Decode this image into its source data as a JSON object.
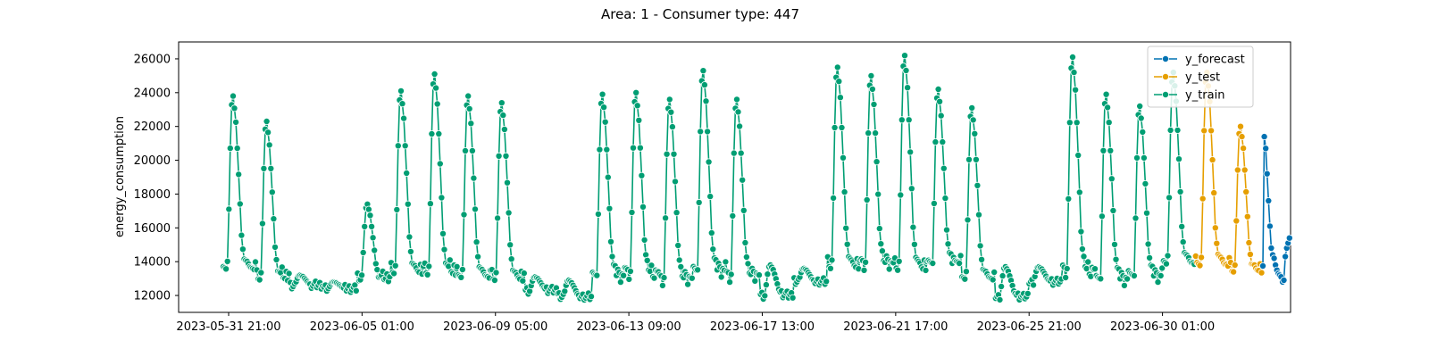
{
  "chart_data": {
    "type": "line",
    "title": "Area: 1 - Consumer type: 447",
    "xlabel": "",
    "ylabel": "energy_consumption",
    "ylim": [
      11000,
      27000
    ],
    "y_ticks": [
      "12000",
      "14000",
      "16000",
      "18000",
      "20000",
      "22000",
      "24000",
      "26000"
    ],
    "x_tick_labels": [
      {
        "label": "2023-05-31 21:00",
        "t": 0
      },
      {
        "label": "2023-06-05 01:00",
        "t": 100
      },
      {
        "label": "2023-06-09 05:00",
        "t": 200
      },
      {
        "label": "2023-06-13 09:00",
        "t": 300
      },
      {
        "label": "2023-06-17 13:00",
        "t": 400
      },
      {
        "label": "2023-06-21 17:00",
        "t": 500
      },
      {
        "label": "2023-06-25 21:00",
        "t": 600
      },
      {
        "label": "2023-06-30 01:00",
        "t": 700
      }
    ],
    "x_time_unit": "hours since 2023-05-31 21:00",
    "legend_position": "top-right",
    "series": [
      {
        "name": "y_forecast",
        "color": "#0072b2"
      },
      {
        "name": "y_test",
        "color": "#e69f00"
      },
      {
        "name": "y_train",
        "color": "#009e73"
      }
    ],
    "train_days": [
      {
        "peak": 23800,
        "low": 13500
      },
      {
        "peak": 22300,
        "low": 13000
      },
      {
        "peak": 13200,
        "low": 12600
      },
      {
        "peak": 12800,
        "low": 12400
      },
      {
        "peak": 17400,
        "low": 13000
      },
      {
        "peak": 24100,
        "low": 13300
      },
      {
        "peak": 25100,
        "low": 13300
      },
      {
        "peak": 23800,
        "low": 13000
      },
      {
        "peak": 23400,
        "low": 12900
      },
      {
        "peak": 13100,
        "low": 12300
      },
      {
        "peak": 12900,
        "low": 11900
      },
      {
        "peak": 23900,
        "low": 13000
      },
      {
        "peak": 24000,
        "low": 13100
      },
      {
        "peak": 23600,
        "low": 12800
      },
      {
        "peak": 25300,
        "low": 13300
      },
      {
        "peak": 23600,
        "low": 13000
      },
      {
        "peak": 13800,
        "low": 12000
      },
      {
        "peak": 13600,
        "low": 12800
      },
      {
        "peak": 25500,
        "low": 13600
      },
      {
        "peak": 25000,
        "low": 13700
      },
      {
        "peak": 26200,
        "low": 13500
      },
      {
        "peak": 24200,
        "low": 13800
      },
      {
        "peak": 23100,
        "low": 12900
      },
      {
        "peak": 13700,
        "low": 11900
      },
      {
        "peak": 13700,
        "low": 12800
      },
      {
        "peak": 26100,
        "low": 13200
      },
      {
        "peak": 23900,
        "low": 12800
      },
      {
        "peak": 23200,
        "low": 13000
      },
      {
        "peak": 25200,
        "low": 13800
      }
    ],
    "test_days": [
      {
        "peak": 25200,
        "low": 13700
      },
      {
        "peak": 22000,
        "low": 13400
      }
    ],
    "forecast_values": [
      21400,
      20700,
      19200,
      17600,
      16100,
      14800,
      14400,
      14200,
      13800,
      13500,
      13300,
      13200,
      13100,
      12800,
      12900,
      14300,
      14800,
      15100,
      15400
    ]
  }
}
